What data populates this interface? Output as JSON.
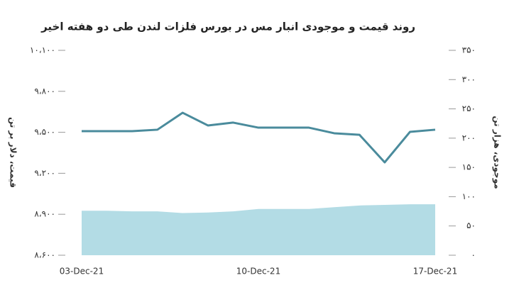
{
  "chart_data": {
    "type": "line",
    "title": "روند قیمت و موجودی انبار مس در بورس فلزات لندن طی دو هفته اخیر",
    "y_label": "قیمت، دلار بر تن",
    "y2_label": "موجودی، هزار تن",
    "categories": [
      "03-Dec-21",
      null,
      null,
      null,
      null,
      null,
      null,
      "10-Dec-21",
      null,
      null,
      null,
      null,
      null,
      null,
      "17-Dec-21"
    ],
    "series": [
      {
        "type": "line",
        "color": "#4a8b9c",
        "values": [
          9508,
          9508,
          9508,
          9519,
          9643,
          9550,
          9571,
          9534,
          9534,
          9534,
          9493,
          9482,
          9280,
          9503,
          9519
        ]
      },
      {
        "type": "area",
        "axis": "y2",
        "color": "#b3dce5",
        "values": [
          76,
          76,
          75,
          75,
          72,
          73,
          75,
          79,
          79,
          79,
          82,
          85,
          86,
          87,
          87
        ]
      }
    ],
    "ylim": [
      8600,
      10100
    ],
    "yticks": [
      {
        "value": 8600,
        "label": "۸،۶۰۰"
      },
      {
        "value": 8900,
        "label": "۸،۹۰۰"
      },
      {
        "value": 9200,
        "label": "۹،۲۰۰"
      },
      {
        "value": 9500,
        "label": "۹،۵۰۰"
      },
      {
        "value": 9800,
        "label": "۹،۸۰۰"
      },
      {
        "value": 10100,
        "label": "۱۰،۱۰۰"
      }
    ],
    "y2lim": [
      0,
      350
    ],
    "y2ticks": [
      {
        "value": 0,
        "label": "۰"
      },
      {
        "value": 50,
        "label": "۵۰"
      },
      {
        "value": 100,
        "label": "۱۰۰"
      },
      {
        "value": 150,
        "label": "۱۵۰"
      },
      {
        "value": 200,
        "label": "۲۰۰"
      },
      {
        "value": 250,
        "label": "۲۵۰"
      },
      {
        "value": 300,
        "label": "۳۰۰"
      },
      {
        "value": 350,
        "label": "۳۵۰"
      }
    ]
  }
}
